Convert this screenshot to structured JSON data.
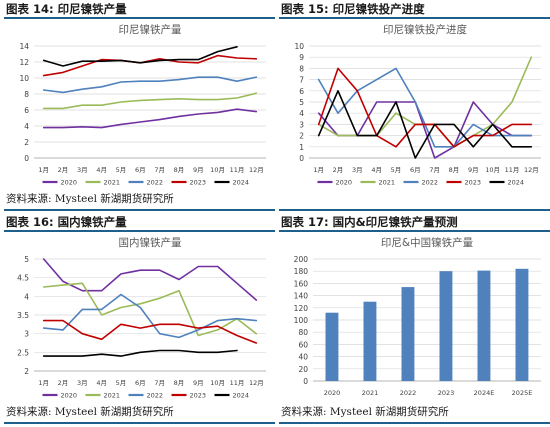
{
  "panels": [
    {
      "title": "图表 14: 印尼镍铁产量",
      "source": "资料来源: Mysteel 新湖期货研究所"
    },
    {
      "title": "图表 15: 印尼镍铁投产进度",
      "source": ""
    },
    {
      "title": "图表 16: 国内镍铁产量",
      "source": "资料来源: Mysteel 新湖期货研究所"
    },
    {
      "title": "图表 17: 国内&印尼镍铁产量预测",
      "source": "资料来源: Mysteel 新湖期货研究所"
    }
  ],
  "chart_data": [
    {
      "type": "line",
      "title": "印尼镍铁产量",
      "categories": [
        "1月",
        "2月",
        "3月",
        "4月",
        "5月",
        "6月",
        "7月",
        "8月",
        "9月",
        "10月",
        "11月",
        "12月"
      ],
      "ylim": [
        0,
        14
      ],
      "yticks": [
        0,
        2,
        4,
        6,
        8,
        10,
        12,
        14
      ],
      "grid": true,
      "legend": "bottom",
      "series": [
        {
          "name": "2020",
          "color": "#7030a0",
          "values": [
            3.8,
            3.8,
            3.9,
            3.8,
            4.2,
            4.5,
            4.8,
            5.2,
            5.5,
            5.7,
            6.1,
            5.8
          ]
        },
        {
          "name": "2021",
          "color": "#9bbb59",
          "values": [
            6.2,
            6.2,
            6.6,
            6.6,
            7.0,
            7.2,
            7.3,
            7.4,
            7.3,
            7.3,
            7.5,
            8.1
          ]
        },
        {
          "name": "2022",
          "color": "#4f81bd",
          "values": [
            8.5,
            8.2,
            8.6,
            8.9,
            9.5,
            9.6,
            9.6,
            9.8,
            10.1,
            10.1,
            9.6,
            10.1
          ]
        },
        {
          "name": "2023",
          "color": "#c00000",
          "values": [
            10.3,
            10.7,
            11.5,
            12.3,
            12.2,
            11.9,
            12.4,
            12.0,
            11.9,
            12.8,
            12.5,
            12.4
          ]
        },
        {
          "name": "2024",
          "color": "#000000",
          "values": [
            12.2,
            11.5,
            12.1,
            12.1,
            12.2,
            11.9,
            12.2,
            12.3,
            12.3,
            13.3,
            13.9,
            null
          ]
        }
      ]
    },
    {
      "type": "line",
      "title": "印尼镍铁投产进度",
      "categories": [
        "1月",
        "2月",
        "3月",
        "4月",
        "5月",
        "6月",
        "7月",
        "8月",
        "9月",
        "10月",
        "11月",
        "12月"
      ],
      "ylim": [
        0,
        10
      ],
      "yticks": [
        0,
        1,
        2,
        3,
        4,
        5,
        6,
        7,
        8,
        9,
        10
      ],
      "grid": true,
      "legend": "bottom",
      "series": [
        {
          "name": "2020",
          "color": "#7030a0",
          "values": [
            4,
            2,
            2,
            5,
            5,
            5,
            0,
            1,
            5,
            3,
            2,
            2
          ]
        },
        {
          "name": "2021",
          "color": "#9bbb59",
          "values": [
            3,
            2,
            2,
            2,
            4,
            3,
            3,
            1,
            2,
            3,
            5,
            9
          ]
        },
        {
          "name": "2022",
          "color": "#4f81bd",
          "values": [
            7,
            4,
            6,
            7,
            8,
            5,
            1,
            1,
            3,
            2,
            2,
            2
          ]
        },
        {
          "name": "2023",
          "color": "#c00000",
          "values": [
            3,
            8,
            6,
            2,
            1,
            3,
            3,
            1,
            2,
            2,
            3,
            3
          ]
        },
        {
          "name": "2024",
          "color": "#000000",
          "values": [
            2,
            6,
            2,
            2,
            5,
            0,
            3,
            3,
            1,
            3,
            1,
            1
          ]
        }
      ]
    },
    {
      "type": "line",
      "title": "国内镍铁产量",
      "categories": [
        "1月",
        "2月",
        "3月",
        "4月",
        "5月",
        "6月",
        "7月",
        "8月",
        "9月",
        "10月",
        "11月",
        "12月"
      ],
      "ylim": [
        2,
        5
      ],
      "yticks": [
        2,
        2.5,
        3,
        3.5,
        4,
        4.5,
        5
      ],
      "grid": true,
      "legend": "bottom",
      "series": [
        {
          "name": "2020",
          "color": "#7030a0",
          "values": [
            5.0,
            4.4,
            4.15,
            4.15,
            4.6,
            4.7,
            4.7,
            4.45,
            4.8,
            4.8,
            4.35,
            3.9
          ]
        },
        {
          "name": "2021",
          "color": "#9bbb59",
          "values": [
            4.25,
            4.3,
            4.35,
            3.5,
            3.7,
            3.8,
            3.95,
            4.15,
            2.95,
            3.1,
            3.4,
            3.0
          ]
        },
        {
          "name": "2022",
          "color": "#4f81bd",
          "values": [
            3.15,
            3.1,
            3.65,
            3.65,
            4.05,
            3.7,
            3.0,
            2.9,
            3.1,
            3.35,
            3.4,
            3.35
          ]
        },
        {
          "name": "2023",
          "color": "#c00000",
          "values": [
            3.35,
            3.35,
            3.0,
            2.85,
            3.25,
            3.15,
            3.25,
            3.25,
            3.15,
            3.2,
            2.95,
            2.75
          ]
        },
        {
          "name": "2024",
          "color": "#000000",
          "values": [
            2.4,
            2.4,
            2.4,
            2.45,
            2.4,
            2.5,
            2.55,
            2.55,
            2.5,
            2.5,
            2.55,
            null
          ]
        }
      ]
    },
    {
      "type": "bar",
      "title": "印尼&中国镍铁产量",
      "categories": [
        "2020",
        "2021",
        "2022",
        "2023",
        "2024E",
        "2025E"
      ],
      "values": [
        112,
        130,
        154,
        180,
        181,
        184
      ],
      "ylim": [
        0,
        200
      ],
      "yticks": [
        0,
        20,
        40,
        60,
        80,
        100,
        120,
        140,
        160,
        180,
        200
      ],
      "grid": true,
      "color": "#4f81bd"
    }
  ]
}
